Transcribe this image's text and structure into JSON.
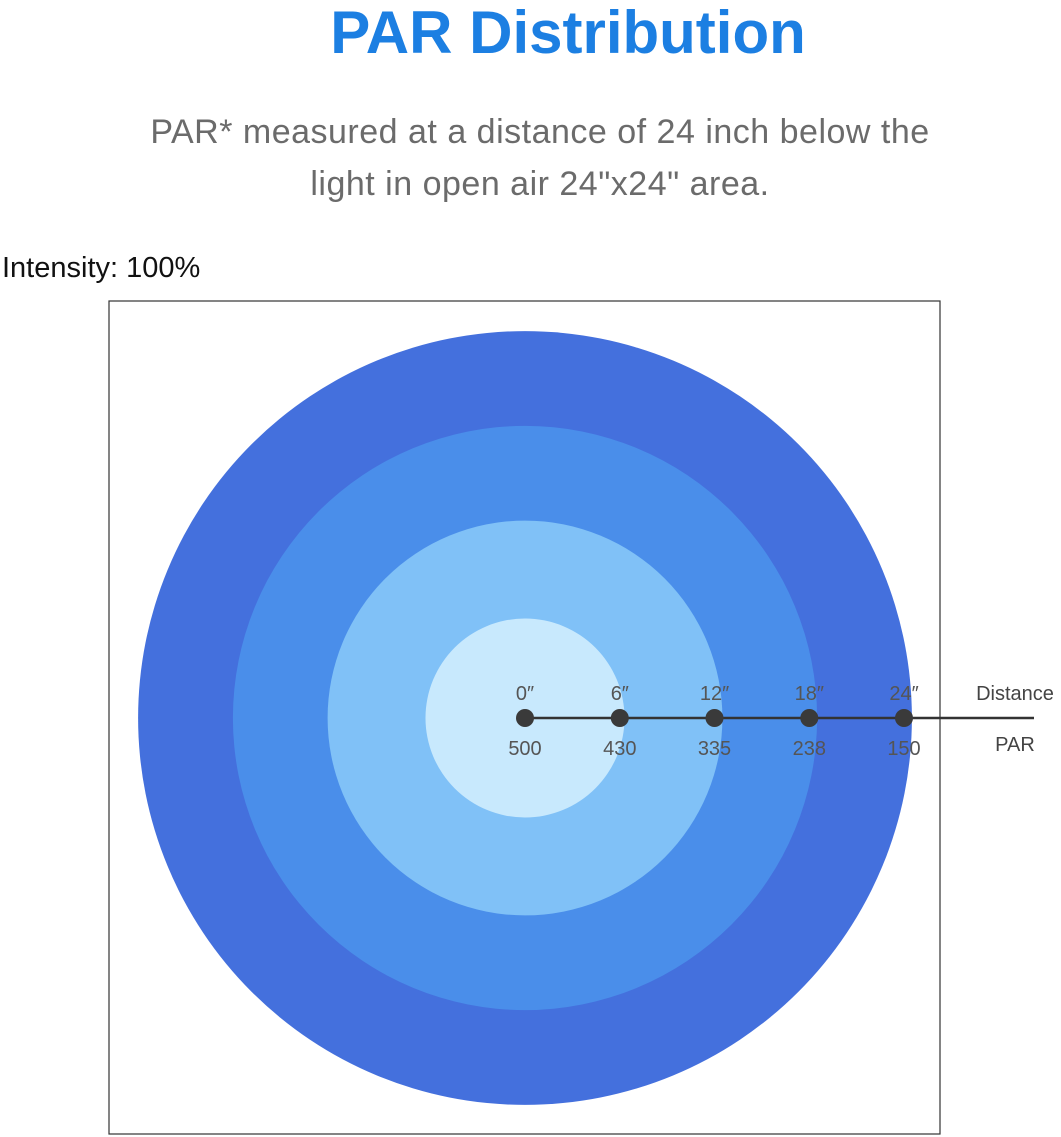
{
  "header": {
    "title": "PAR Distribution",
    "subtitle_line1": "PAR* measured at a distance of 24 inch below the",
    "subtitle_line2": "light in open air 24\"x24\" area.",
    "intensity": "Intensity: 100%"
  },
  "chart_data": {
    "type": "radial",
    "distance_label": "Distance",
    "value_label": "PAR",
    "points": [
      {
        "distance": "0″",
        "inches": 0,
        "par": "500"
      },
      {
        "distance": "6″",
        "inches": 6,
        "par": "430"
      },
      {
        "distance": "12″",
        "inches": 12,
        "par": "335"
      },
      {
        "distance": "18″",
        "inches": 18,
        "par": "238"
      },
      {
        "distance": "24″",
        "inches": 24,
        "par": "150"
      }
    ],
    "rings": [
      {
        "outer_inches": 24.5,
        "color": "#4470dd"
      },
      {
        "outer_inches": 18.5,
        "color": "#4a8eea"
      },
      {
        "outer_inches": 12.5,
        "color": "#80c1f7"
      },
      {
        "outer_inches": 6.3,
        "color": "#c8e9fd"
      }
    ],
    "colors": {
      "axis_line": "#333333",
      "marker": "#3a3a3a",
      "frame": "#333333"
    }
  }
}
